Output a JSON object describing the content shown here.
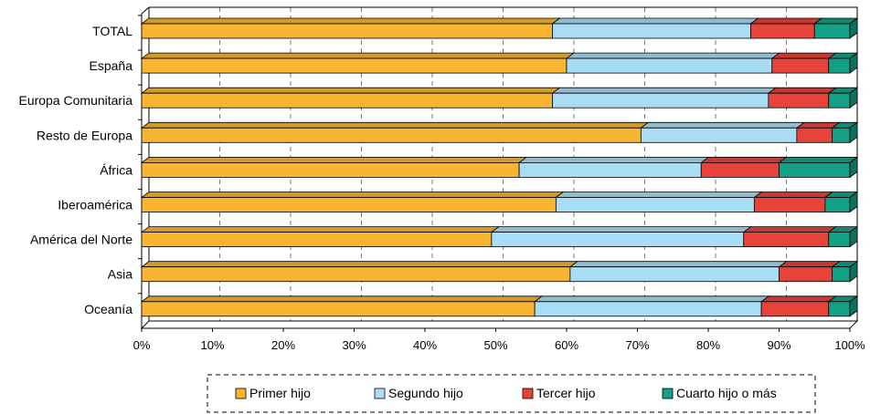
{
  "chart_data": {
    "type": "bar",
    "orientation": "horizontal",
    "stacked": "percent",
    "categories": [
      "TOTAL",
      "España",
      "Europa Comunitaria",
      "Resto de Europa",
      "África",
      "Iberoamérica",
      "América del Norte",
      "Asia",
      "Oceanía"
    ],
    "series": [
      {
        "name": "Primer hijo",
        "color": "#f7b531",
        "values": [
          58,
          60,
          58,
          70.5,
          53.3,
          58.5,
          49.4,
          60.5,
          55.5
        ]
      },
      {
        "name": "Segundo hijo",
        "color": "#a9ddf5",
        "values": [
          28,
          29,
          30.5,
          22,
          25.7,
          28,
          35.6,
          29.5,
          32
        ]
      },
      {
        "name": "Tercer hijo",
        "color": "#e8433a",
        "values": [
          9,
          8,
          8.5,
          5,
          11,
          10,
          12,
          7.5,
          9.5
        ]
      },
      {
        "name": "Cuarto hijo o más",
        "color": "#14a085",
        "values": [
          5,
          3,
          3,
          2.5,
          10,
          3.5,
          3,
          2.5,
          3
        ]
      }
    ],
    "xticks": [
      "0%",
      "10%",
      "20%",
      "30%",
      "40%",
      "50%",
      "60%",
      "70%",
      "80%",
      "90%",
      "100%"
    ],
    "xlim": [
      0,
      100
    ],
    "grid": "vertical dashed",
    "legend_position": "bottom",
    "title": "",
    "xlabel": "",
    "ylabel": ""
  }
}
